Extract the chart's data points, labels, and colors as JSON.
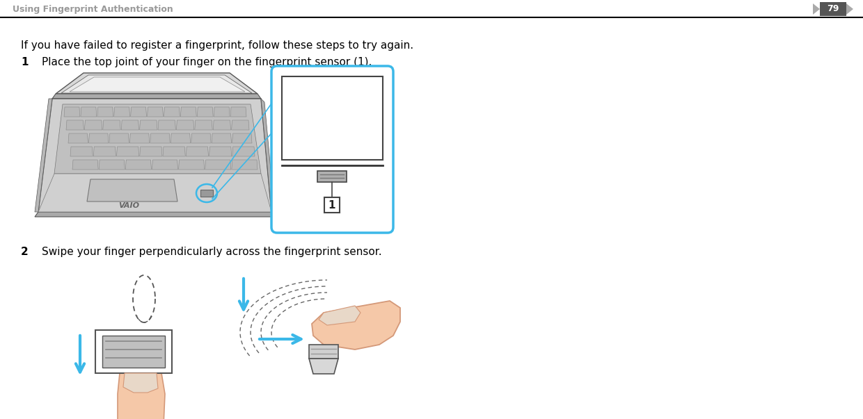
{
  "bg_color": "#ffffff",
  "header_text": "Using Fingerprint Authentication",
  "page_number": "79",
  "header_text_color": "#999999",
  "body_text_color": "#000000",
  "intro_text": "If you have failed to register a fingerprint, follow these steps to try again.",
  "step1_num": "1",
  "step1_text": "Place the top joint of your finger on the fingerprint sensor (1).",
  "step2_num": "2",
  "step2_text": "Swipe your finger perpendicularly across the fingerprint sensor.",
  "cyan_color": "#3bb8e8",
  "arrow_color": "#3bb8e8",
  "gray_dark": "#555555",
  "gray_mid": "#888888",
  "gray_light": "#cccccc",
  "gray_laptop": "#c0c0c0",
  "skin_color": "#f5c8a8",
  "skin_dark": "#d49878",
  "figsize": [
    12.4,
    6.03
  ],
  "dpi": 100
}
